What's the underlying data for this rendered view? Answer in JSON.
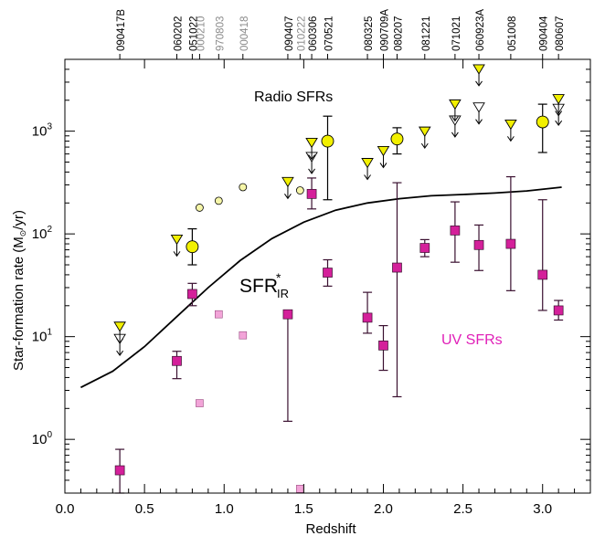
{
  "chart_data": {
    "type": "scatter",
    "xlabel": "Redshift",
    "ylabel": "Star-formation rate (M",
    "ylabel_sun": "⊙",
    "ylabel_tail": "/yr)",
    "xlim": [
      0.0,
      3.3
    ],
    "ylim": [
      0.3,
      5000
    ],
    "yscale": "log",
    "x_ticks": [
      "0.0",
      "0.5",
      "1.0",
      "1.5",
      "2.0",
      "2.5",
      "3.0"
    ],
    "x_tick_values": [
      0.0,
      0.5,
      1.0,
      1.5,
      2.0,
      2.5,
      3.0
    ],
    "y_tick_values": [
      1,
      10,
      100,
      1000
    ],
    "y_ticks": [
      {
        "base": "10",
        "exp": "0"
      },
      {
        "base": "10",
        "exp": "1"
      },
      {
        "base": "10",
        "exp": "2"
      },
      {
        "base": "10",
        "exp": "3"
      }
    ],
    "grb_labels": [
      {
        "label": "090417B",
        "x": 0.345,
        "gray": false
      },
      {
        "label": "060202",
        "x": 0.703,
        "gray": false
      },
      {
        "label": "051022",
        "x": 0.8,
        "gray": false
      },
      {
        "label": "000210",
        "x": 0.846,
        "gray": true
      },
      {
        "label": "970803",
        "x": 0.966,
        "gray": true
      },
      {
        "label": "000418",
        "x": 1.118,
        "gray": true
      },
      {
        "label": "090407",
        "x": 1.4,
        "gray": false
      },
      {
        "label": "010222",
        "x": 1.477,
        "gray": true
      },
      {
        "label": "060306",
        "x": 1.55,
        "gray": false
      },
      {
        "label": "070521",
        "x": 1.65,
        "gray": false
      },
      {
        "label": "080325",
        "x": 1.9,
        "gray": false
      },
      {
        "label": "090709A",
        "x": 2.0,
        "gray": false
      },
      {
        "label": "080207",
        "x": 2.086,
        "gray": false
      },
      {
        "label": "081221",
        "x": 2.26,
        "gray": false
      },
      {
        "label": "071021",
        "x": 2.45,
        "gray": false
      },
      {
        "label": "060923A",
        "x": 2.6,
        "gray": false
      },
      {
        "label": "051008",
        "x": 2.8,
        "gray": false
      },
      {
        "label": "090404",
        "x": 3.0,
        "gray": false
      },
      {
        "label": "080607",
        "x": 3.1,
        "gray": false
      }
    ],
    "annotations": {
      "radio": "Radio SFRs",
      "uv": "UV SFRs",
      "sfr_main": "SFR",
      "sfr_sup": "*",
      "sfr_sub": "IR"
    },
    "colors": {
      "radio_fill": "#f2f000",
      "radio_light": "#f6f6a8",
      "uv_fill": "#d4209a",
      "uv_light": "#f2a4d8",
      "uv_text": "#e020b8",
      "errorbar": "#3a1030",
      "gray_label": "#8c8c8c"
    },
    "series": [
      {
        "name": "Radio SFRs",
        "marker": "circle",
        "points": [
          {
            "x": 0.8,
            "y": 75,
            "lo": 50,
            "hi": 112
          },
          {
            "x": 1.65,
            "y": 800,
            "lo": 215,
            "hi": 1400
          },
          {
            "x": 2.086,
            "y": 840,
            "lo": 600,
            "hi": 1080
          },
          {
            "x": 3.0,
            "y": 1230,
            "lo": 620,
            "hi": 1830
          }
        ]
      },
      {
        "name": "Radio SFRs (literature)",
        "marker": "circle-small",
        "points": [
          {
            "x": 0.846,
            "y": 180
          },
          {
            "x": 0.966,
            "y": 210
          },
          {
            "x": 1.118,
            "y": 285
          },
          {
            "x": 1.477,
            "y": 265
          }
        ]
      },
      {
        "name": "Radio upper limits",
        "marker": "triangle-down",
        "points": [
          {
            "x": 0.345,
            "y": 12.5,
            "extra": [
              9.5
            ]
          },
          {
            "x": 0.703,
            "y": 88
          },
          {
            "x": 1.4,
            "y": 320
          },
          {
            "x": 1.55,
            "y": 770,
            "extra": [
              560
            ]
          },
          {
            "x": 1.9,
            "y": 490
          },
          {
            "x": 2.0,
            "y": 640
          },
          {
            "x": 2.26,
            "y": 990
          },
          {
            "x": 2.45,
            "y": 1820,
            "extra": [
              1270
            ]
          },
          {
            "x": 2.6,
            "y": 4000,
            "extra": [
              1700
            ]
          },
          {
            "x": 2.8,
            "y": 1160
          },
          {
            "x": 3.1,
            "y": 2050,
            "extra": [
              1650
            ]
          }
        ]
      },
      {
        "name": "UV SFRs",
        "marker": "square",
        "points": [
          {
            "x": 0.345,
            "y": 0.5,
            "lo": 0.3,
            "hi": 0.8
          },
          {
            "x": 0.703,
            "y": 5.8,
            "lo": 3.9,
            "hi": 7.2
          },
          {
            "x": 0.8,
            "y": 26,
            "lo": 20,
            "hi": 33
          },
          {
            "x": 1.4,
            "y": 16.5,
            "lo": 1.5,
            "hi": 17
          },
          {
            "x": 1.55,
            "y": 245,
            "lo": 175,
            "hi": 350
          },
          {
            "x": 1.65,
            "y": 42,
            "lo": 31,
            "hi": 56
          },
          {
            "x": 1.9,
            "y": 15.3,
            "lo": 10.8,
            "hi": 27
          },
          {
            "x": 2.0,
            "y": 8.2,
            "lo": 4.7,
            "hi": 12.8
          },
          {
            "x": 2.086,
            "y": 47,
            "lo": 2.6,
            "hi": 315
          },
          {
            "x": 2.26,
            "y": 73,
            "lo": 60,
            "hi": 88
          },
          {
            "x": 2.45,
            "y": 108,
            "lo": 53,
            "hi": 205
          },
          {
            "x": 2.6,
            "y": 78,
            "lo": 44,
            "hi": 122
          },
          {
            "x": 2.8,
            "y": 80,
            "lo": 28,
            "hi": 360
          },
          {
            "x": 3.0,
            "y": 40,
            "lo": 18,
            "hi": 215
          },
          {
            "x": 3.1,
            "y": 18,
            "lo": 14.5,
            "hi": 22.5
          }
        ]
      },
      {
        "name": "UV SFRs (literature)",
        "marker": "square-light",
        "points": [
          {
            "x": 0.846,
            "y": 2.25
          },
          {
            "x": 0.966,
            "y": 16.5
          },
          {
            "x": 1.118,
            "y": 10.3
          },
          {
            "x": 1.477,
            "y": 0.33
          }
        ]
      },
      {
        "name": "SFR IR",
        "marker": "line",
        "points": [
          {
            "x": 0.1,
            "y": 3.2
          },
          {
            "x": 0.3,
            "y": 4.6
          },
          {
            "x": 0.5,
            "y": 8.0
          },
          {
            "x": 0.7,
            "y": 15.5
          },
          {
            "x": 0.9,
            "y": 30
          },
          {
            "x": 1.1,
            "y": 55
          },
          {
            "x": 1.3,
            "y": 90
          },
          {
            "x": 1.5,
            "y": 130
          },
          {
            "x": 1.7,
            "y": 170
          },
          {
            "x": 1.9,
            "y": 200
          },
          {
            "x": 2.1,
            "y": 220
          },
          {
            "x": 2.3,
            "y": 235
          },
          {
            "x": 2.5,
            "y": 242
          },
          {
            "x": 2.7,
            "y": 250
          },
          {
            "x": 2.9,
            "y": 262
          },
          {
            "x": 3.12,
            "y": 285
          }
        ]
      }
    ]
  }
}
